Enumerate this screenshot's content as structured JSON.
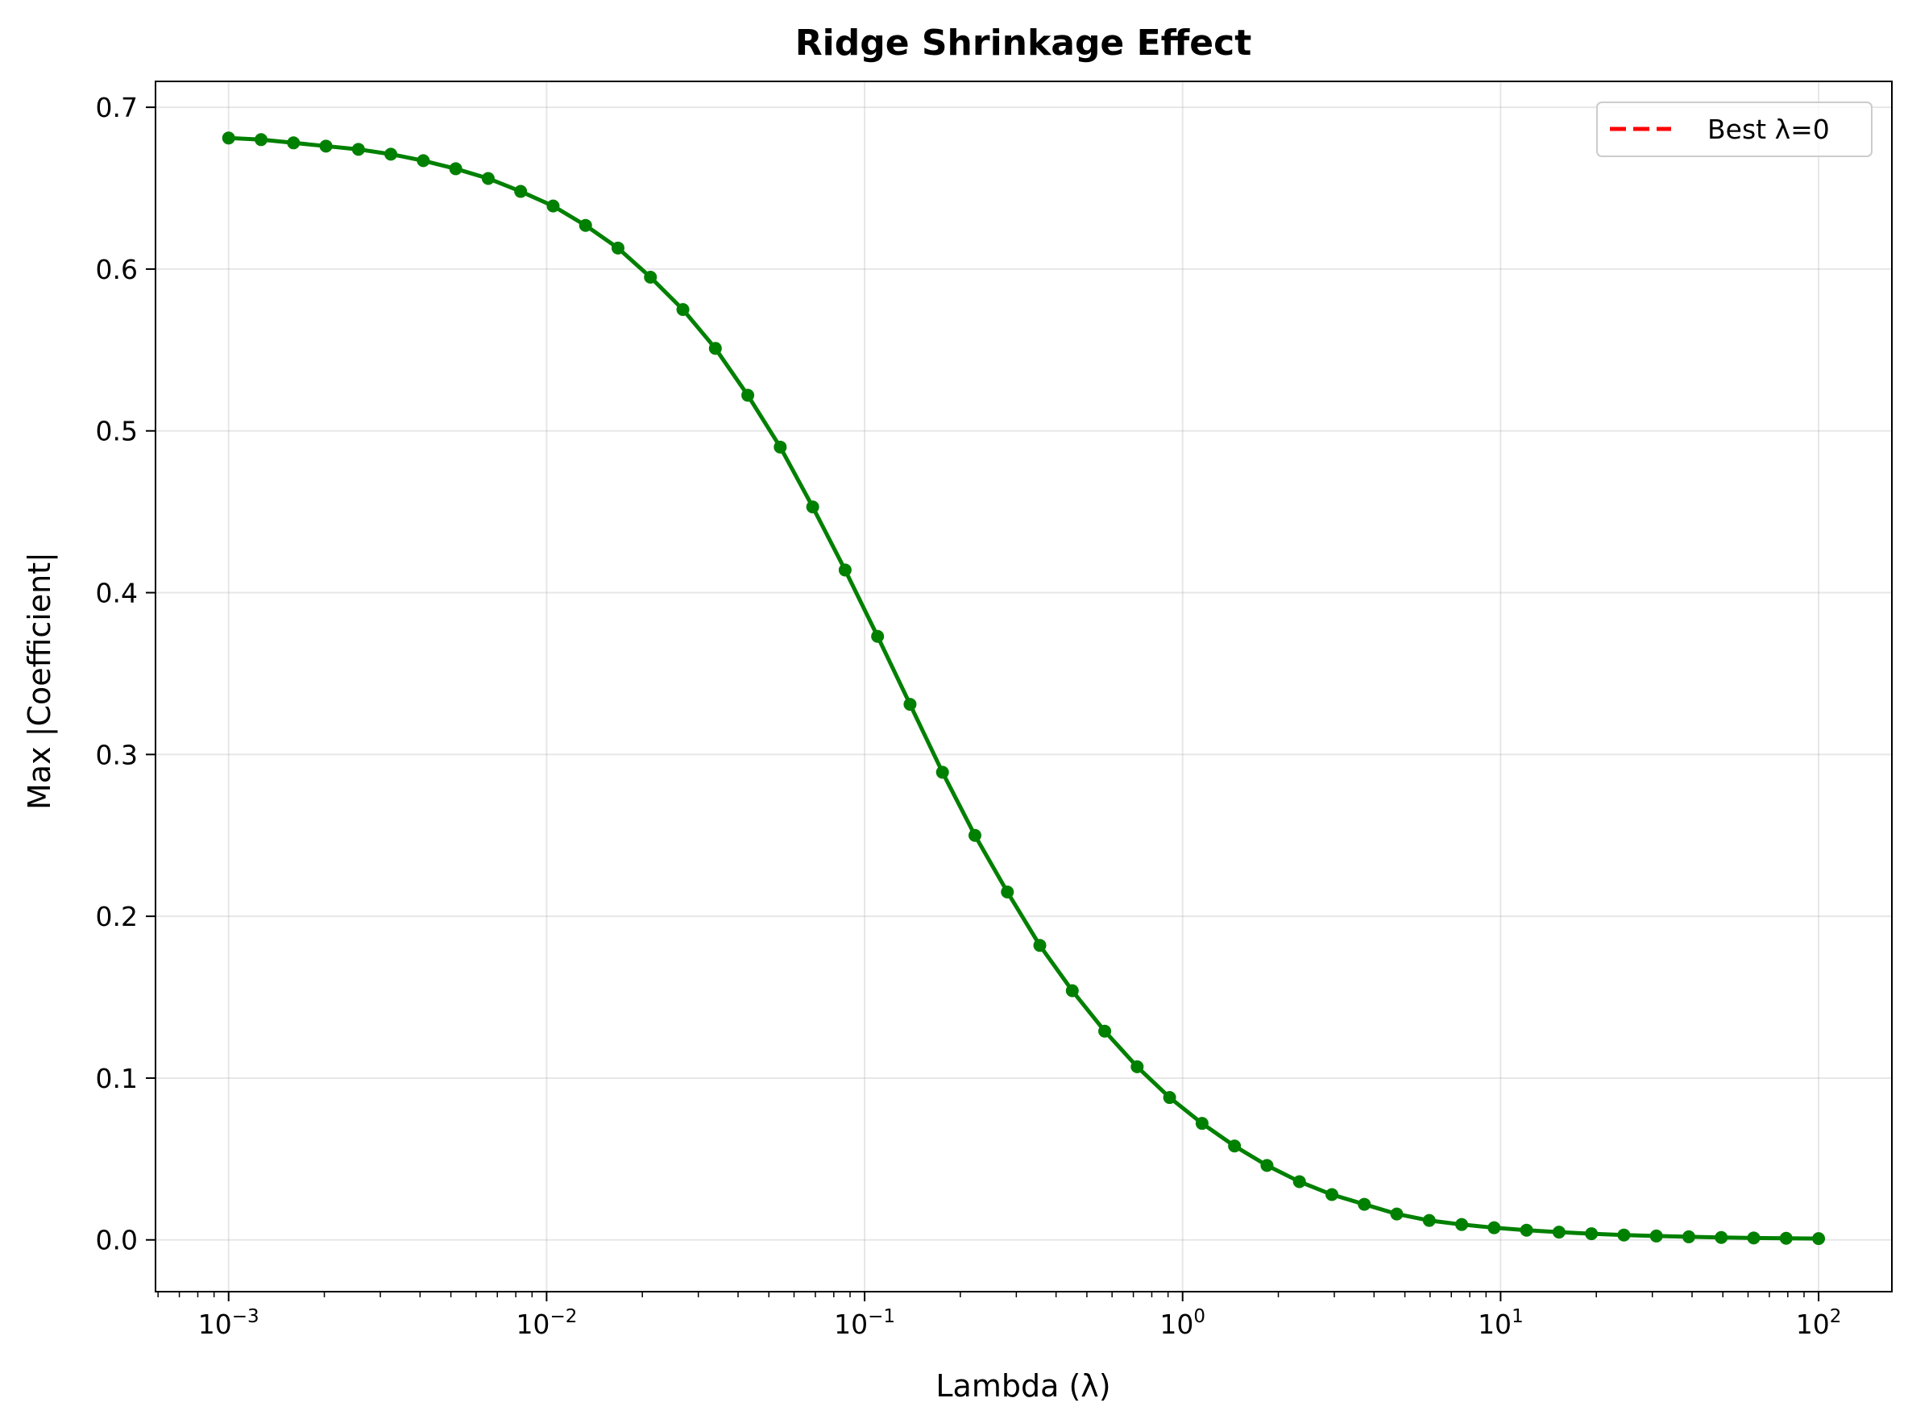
{
  "chart_data": {
    "type": "line",
    "title": "Ridge Shrinkage Effect",
    "xlabel": "Lambda (λ)",
    "ylabel": "Max |Coefficient|",
    "x_scale": "log",
    "xlim": [
      0.000589,
      170
    ],
    "ylim": [
      -0.032,
      0.716
    ],
    "grid": true,
    "legend_placement": "top-right",
    "x_ticks": [
      {
        "value": 0.001,
        "base": "10",
        "exp": "−3"
      },
      {
        "value": 0.01,
        "base": "10",
        "exp": "−2"
      },
      {
        "value": 0.1,
        "base": "10",
        "exp": "−1"
      },
      {
        "value": 1,
        "base": "10",
        "exp": "0"
      },
      {
        "value": 10,
        "base": "10",
        "exp": "1"
      },
      {
        "value": 100,
        "base": "10",
        "exp": "2"
      }
    ],
    "y_ticks": [
      0.0,
      0.1,
      0.2,
      0.3,
      0.4,
      0.5,
      0.6,
      0.7
    ],
    "y_tick_labels": [
      "0.0",
      "0.1",
      "0.2",
      "0.3",
      "0.4",
      "0.5",
      "0.6",
      "0.7"
    ],
    "series": [
      {
        "color": "#008000",
        "line_style": "solid",
        "marker": "circle",
        "x": [
          0.001,
          0.001265,
          0.0016,
          0.002024,
          0.00256,
          0.003237,
          0.004095,
          0.005179,
          0.006551,
          0.008286,
          0.010481,
          0.013257,
          0.016768,
          0.02121,
          0.026827,
          0.033932,
          0.042919,
          0.054287,
          0.068665,
          0.086851,
          0.109854,
          0.13895,
          0.175751,
          0.2223,
          0.281177,
          0.355648,
          0.449843,
          0.568987,
          0.719686,
          0.910298,
          1.151395,
          1.456348,
          1.84207,
          2.329952,
          2.947052,
          3.727594,
          4.714866,
          5.963623,
          7.54312,
          9.540955,
          12.067926,
          15.26418,
          19.306977,
          24.420531,
          30.888436,
          39.069399,
          49.417134,
          62.505519,
          79.060432,
          100.0
        ],
        "values": [
          0.681,
          0.68,
          0.678,
          0.676,
          0.674,
          0.671,
          0.667,
          0.662,
          0.656,
          0.648,
          0.639,
          0.627,
          0.613,
          0.595,
          0.575,
          0.551,
          0.522,
          0.49,
          0.453,
          0.414,
          0.373,
          0.331,
          0.289,
          0.25,
          0.215,
          0.182,
          0.154,
          0.129,
          0.107,
          0.088,
          0.072,
          0.058,
          0.046,
          0.036,
          0.028,
          0.022,
          0.016,
          0.012,
          0.0095,
          0.0075,
          0.006,
          0.0048,
          0.0038,
          0.003,
          0.0024,
          0.0019,
          0.0015,
          0.0012,
          0.001,
          0.0008
        ]
      }
    ],
    "legend": [
      {
        "label": "Best λ=0",
        "color": "#ff0000",
        "line_style": "dashed"
      }
    ]
  }
}
